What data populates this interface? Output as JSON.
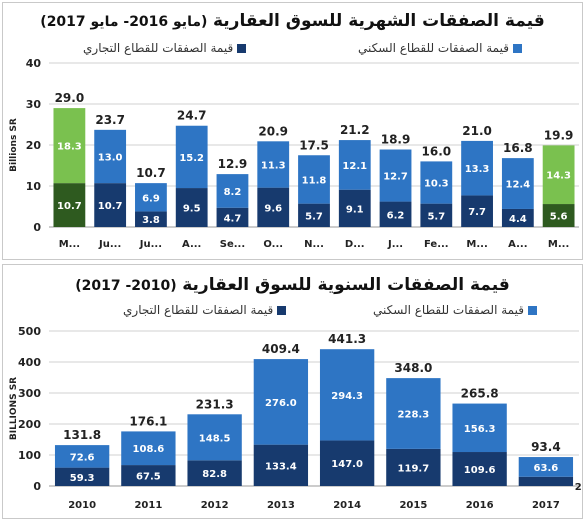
{
  "colors": {
    "residential": "#2e75c4",
    "commercial": "#173a6e",
    "highlight_residential": "#7ac14f",
    "highlight_commercial": "#2e5a1f",
    "grid": "#d0d0d0"
  },
  "chart_data": [
    {
      "type": "bar",
      "stacked": true,
      "title_main": "قيمة الصفقات الشهرية للسوق العقارية",
      "title_sub": "(مايو 2016- مايو 2017)",
      "ylabel": "Billions SR",
      "ylim": [
        0,
        40
      ],
      "yticks": [
        "0",
        "10",
        "20",
        "30",
        "40"
      ],
      "grid": true,
      "legend_position": "top",
      "categories": [
        "M...",
        "Ju...",
        "Ju...",
        "A...",
        "Se...",
        "O...",
        "N...",
        "D...",
        "J...",
        "Fe...",
        "M...",
        "A...",
        "M..."
      ],
      "series": [
        {
          "name": "قيمة الصفقات للقطاع التجاري",
          "values": [
            10.7,
            10.7,
            3.8,
            9.5,
            4.7,
            9.6,
            5.7,
            9.1,
            6.2,
            5.7,
            7.7,
            4.4,
            5.6
          ]
        },
        {
          "name": "قيمة الصفقات للقطاع السكني",
          "values": [
            18.3,
            13.0,
            6.9,
            15.2,
            8.2,
            11.3,
            11.8,
            12.1,
            12.7,
            10.3,
            13.3,
            12.4,
            14.3
          ]
        }
      ],
      "totals": [
        "29.0",
        "23.7",
        "10.7",
        "24.7",
        "12.9",
        "20.9",
        "17.5",
        "21.2",
        "18.9",
        "16.0",
        "21.0",
        "16.8",
        "19.9"
      ],
      "highlight": [
        0,
        12
      ]
    },
    {
      "type": "bar",
      "stacked": true,
      "title_main": "قيمة الصفقات السنوية للسوق العقارية",
      "title_sub": "(2010- 2017)",
      "ylabel": "BILLIONS SR",
      "ylim": [
        0,
        500
      ],
      "yticks": [
        "0",
        "100",
        "200",
        "300",
        "400",
        "500"
      ],
      "grid": true,
      "legend_position": "top",
      "categories": [
        "2010",
        "2011",
        "2012",
        "2013",
        "2014",
        "2015",
        "2016",
        "2017"
      ],
      "series": [
        {
          "name": "قيمة الصفقات للقطاع التجاري",
          "values": [
            59.3,
            67.5,
            82.8,
            133.4,
            147.0,
            119.7,
            109.6,
            29.8
          ]
        },
        {
          "name": "قيمة الصفقات للقطاع السكني",
          "values": [
            72.6,
            108.6,
            148.5,
            276.0,
            294.3,
            228.3,
            156.3,
            63.6
          ]
        }
      ],
      "totals": [
        "131.8",
        "176.1",
        "231.3",
        "409.4",
        "441.3",
        "348.0",
        "265.8",
        "93.4"
      ],
      "highlight": []
    }
  ]
}
